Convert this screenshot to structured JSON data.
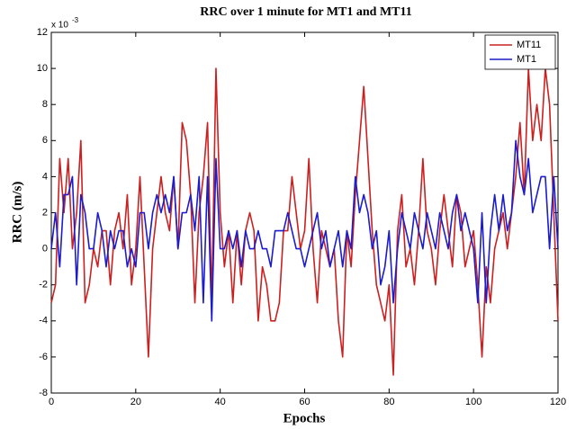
{
  "chart_data": {
    "type": "line",
    "title": "RRC over 1 minute for MT1 and MT11",
    "x_label": "Epochs",
    "y_label": "RRC (m/s)",
    "y_scale_base": "x 10",
    "y_scale_exponent": "-3",
    "x": [
      0,
      1,
      2,
      3,
      4,
      5,
      6,
      7,
      8,
      9,
      10,
      11,
      12,
      13,
      14,
      15,
      16,
      17,
      18,
      19,
      20,
      21,
      22,
      23,
      24,
      25,
      26,
      27,
      28,
      29,
      30,
      31,
      32,
      33,
      34,
      35,
      36,
      37,
      38,
      39,
      40,
      41,
      42,
      43,
      44,
      45,
      46,
      47,
      48,
      49,
      50,
      51,
      52,
      53,
      54,
      55,
      56,
      57,
      58,
      59,
      60,
      61,
      62,
      63,
      64,
      65,
      66,
      67,
      68,
      69,
      70,
      71,
      72,
      73,
      74,
      75,
      76,
      77,
      78,
      79,
      80,
      81,
      82,
      83,
      84,
      85,
      86,
      87,
      88,
      89,
      90,
      91,
      92,
      93,
      94,
      95,
      96,
      97,
      98,
      99,
      100,
      101,
      102,
      103,
      104,
      105,
      106,
      107,
      108,
      109,
      110,
      111,
      112,
      113,
      114,
      115,
      116,
      117,
      118,
      119,
      120
    ],
    "series": [
      {
        "name": "MT11",
        "color": "#cc2020",
        "values": [
          -3,
          -2,
          5,
          2,
          5,
          0,
          2,
          6,
          -3,
          -2,
          0,
          -1,
          1,
          1,
          -2,
          1,
          2,
          0,
          3,
          -2,
          0,
          4,
          -1,
          -6,
          0,
          2,
          4,
          2,
          1,
          4,
          0,
          7,
          6,
          3,
          -3,
          2,
          4,
          7,
          -3,
          10,
          2,
          -1,
          1,
          -3,
          1,
          -2,
          1,
          2,
          1,
          -4,
          -1,
          -2,
          -4,
          -4,
          -3,
          1,
          1,
          4,
          2,
          0,
          1,
          5,
          0,
          -3,
          1,
          0,
          -1,
          0,
          -4,
          -6,
          1,
          -1,
          3,
          6,
          9,
          5,
          1,
          -2,
          -3,
          -4,
          -2,
          -7,
          1,
          3,
          -1,
          0,
          -2,
          1,
          5,
          1,
          0,
          -2,
          1,
          3,
          1,
          -1,
          3,
          2,
          -1,
          0,
          1,
          -2,
          -6,
          -1,
          -3,
          0,
          1,
          2,
          0,
          2,
          4,
          7,
          3,
          10,
          6,
          8,
          6,
          10,
          8,
          2,
          -4
        ]
      },
      {
        "name": "MT1",
        "color": "#1c1ccc",
        "values": [
          0,
          2,
          -1,
          3,
          3,
          4,
          -2,
          3,
          2,
          0,
          0,
          2,
          1,
          -1,
          1,
          0,
          1,
          1,
          -1,
          0,
          -1,
          2,
          2,
          0,
          2,
          3,
          2,
          3,
          2,
          4,
          0,
          2,
          2,
          3,
          1,
          4,
          -3,
          4,
          -4,
          5,
          0,
          0,
          1,
          0,
          1,
          -1,
          1,
          0,
          0,
          1,
          0,
          0,
          -1,
          1,
          1,
          1,
          2,
          1,
          0,
          0,
          -1,
          0,
          1,
          2,
          0,
          1,
          -1,
          0,
          1,
          -1,
          1,
          0,
          4,
          2,
          3,
          2,
          0,
          1,
          -2,
          -1,
          1,
          -3,
          0,
          2,
          1,
          0,
          2,
          1,
          0,
          2,
          1,
          0,
          2,
          1,
          0,
          2,
          3,
          1,
          2,
          1,
          0,
          -3,
          2,
          -3,
          1,
          3,
          1,
          3,
          1,
          2,
          6,
          4,
          3,
          5,
          2,
          3,
          4,
          4,
          0,
          4,
          0
        ]
      }
    ],
    "xlim": [
      0,
      120
    ],
    "xticks": [
      0,
      20,
      40,
      60,
      80,
      100,
      120
    ],
    "ylim": [
      -8,
      12
    ],
    "yticks": [
      -8,
      -6,
      -4,
      -2,
      0,
      2,
      4,
      6,
      8,
      10,
      12
    ],
    "legend": "upper right"
  }
}
